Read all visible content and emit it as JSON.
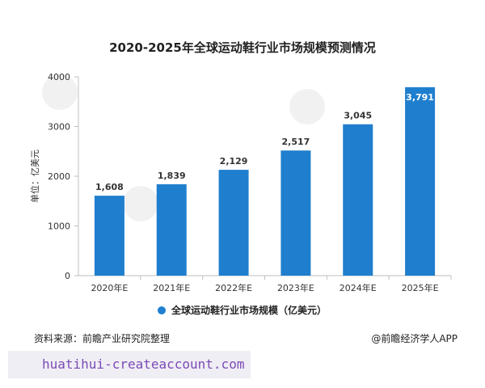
{
  "chart_data": {
    "type": "bar",
    "title": "2020-2025年全球运动鞋行业市场规模预测情况",
    "ylabel": "单位：亿美元",
    "categories": [
      "2020年E",
      "2021年E",
      "2022年E",
      "2023年E",
      "2024年E",
      "2025年E"
    ],
    "series": [
      {
        "name": "全球运动鞋行业市场规模（亿美元）",
        "values": [
          1608,
          1839,
          2129,
          2517,
          3045,
          3791
        ]
      }
    ],
    "data_labels": [
      "1,608",
      "1,839",
      "2,129",
      "2,517",
      "3,045",
      "3,791"
    ],
    "yticks": [
      0,
      1000,
      2000,
      3000,
      4000
    ],
    "ylim": [
      0,
      4000
    ],
    "grid": false,
    "legend_position": "bottom",
    "bar_color": "#1f7fce"
  },
  "footer": {
    "source": "资料来源：前瞻产业研究院整理",
    "brand": "@前瞻经济学人APP"
  },
  "watermark_url": "huatihui-createaccount.com"
}
